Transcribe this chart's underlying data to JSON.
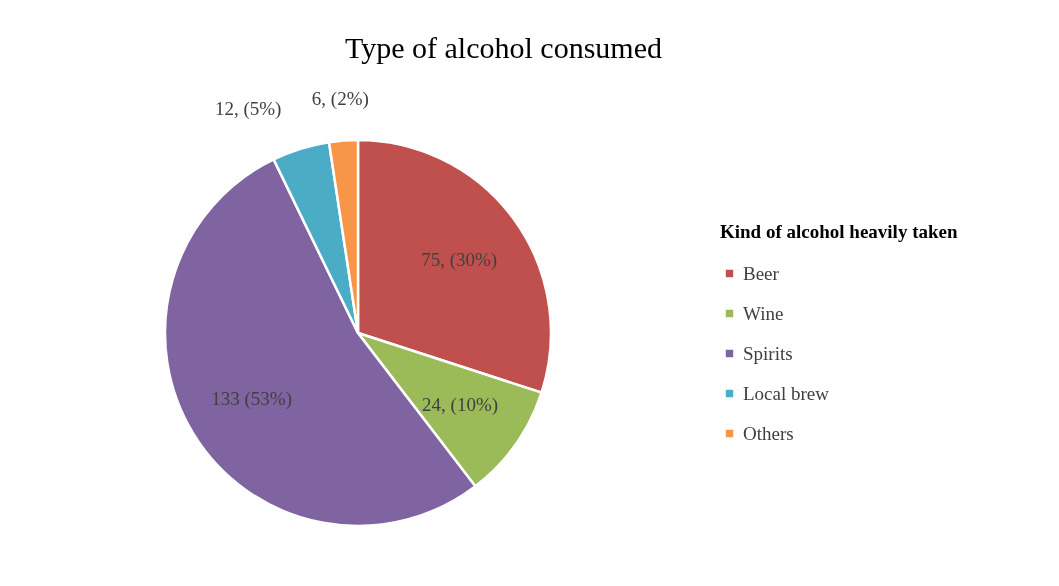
{
  "chart_data": {
    "type": "pie",
    "title": "Type of alcohol consumed",
    "legend_title": "Kind of alcohol heavily taken",
    "categories": [
      "Beer",
      "Wine",
      "Spirits",
      "Local brew",
      "Others"
    ],
    "values": [
      75,
      24,
      133,
      12,
      6
    ],
    "colors": [
      "#c0504d",
      "#9bbb59",
      "#8064a2",
      "#4bacc6",
      "#f79646"
    ],
    "value_labels": [
      "75, (30%)",
      "24, (10%)",
      "133 (53%)",
      "12, (5%)",
      "6, (2%)"
    ],
    "legend": "right"
  }
}
